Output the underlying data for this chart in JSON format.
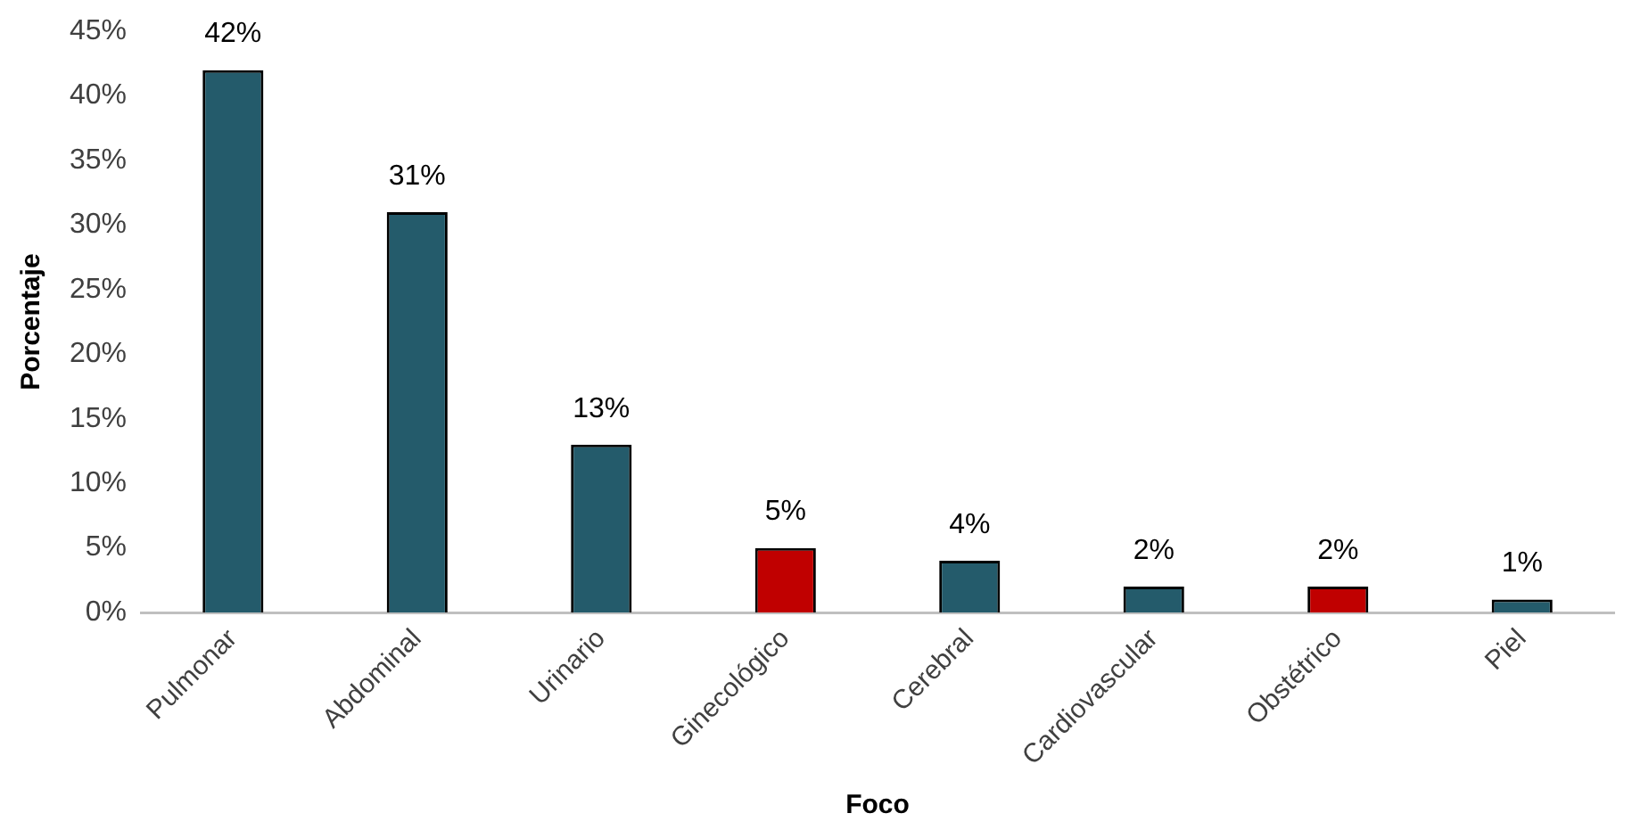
{
  "chart_data": {
    "type": "bar",
    "xlabel": "Foco",
    "ylabel": "Porcentaje",
    "categories": [
      "Pulmonar",
      "Abdominal",
      "Urinario",
      "Ginecológico",
      "Cerebral",
      "Cardiovascular",
      "Obstétrico",
      "Piel"
    ],
    "values": [
      42,
      31,
      13,
      5,
      4,
      2,
      2,
      1
    ],
    "value_labels": [
      "42%",
      "31%",
      "13%",
      "5%",
      "4%",
      "2%",
      "2%",
      "1%"
    ],
    "colors": [
      "#245b6b",
      "#245b6b",
      "#245b6b",
      "#c00000",
      "#245b6b",
      "#245b6b",
      "#c00000",
      "#245b6b"
    ],
    "ylim": [
      0,
      45
    ],
    "yticks": [
      {
        "value": 0,
        "label": "0%"
      },
      {
        "value": 5,
        "label": "5%"
      },
      {
        "value": 10,
        "label": "10%"
      },
      {
        "value": 15,
        "label": "15%"
      },
      {
        "value": 20,
        "label": "20%"
      },
      {
        "value": 25,
        "label": "25%"
      },
      {
        "value": 30,
        "label": "30%"
      },
      {
        "value": 35,
        "label": "35%"
      },
      {
        "value": 40,
        "label": "40%"
      },
      {
        "value": 45,
        "label": "45%"
      }
    ],
    "grid": false,
    "legend": false
  }
}
